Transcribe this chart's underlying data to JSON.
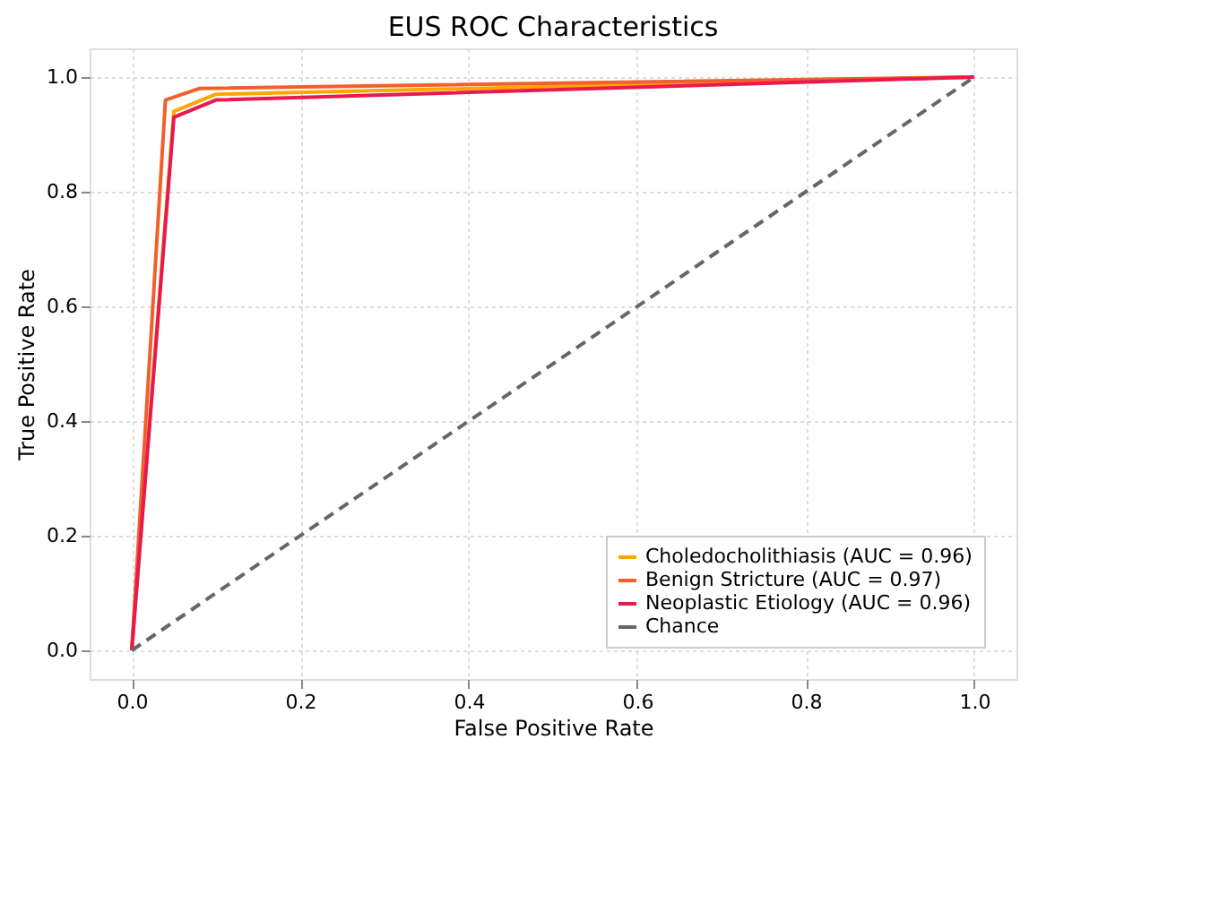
{
  "chart_data": {
    "type": "line",
    "title": "EUS ROC Characteristics",
    "xlabel": "False Positive Rate",
    "ylabel": "True Positive Rate",
    "xlim": [
      -0.05,
      1.05
    ],
    "ylim": [
      -0.05,
      1.05
    ],
    "xticks": [
      {
        "value": 0,
        "label": "0.0"
      },
      0.2,
      0.4,
      0.6,
      0.8,
      {
        "value": 1,
        "label": "1.0"
      }
    ],
    "yticks": [
      {
        "value": 0,
        "label": "0.0"
      },
      0.2,
      0.4,
      0.6,
      0.8,
      {
        "value": 1,
        "label": "1.0"
      }
    ],
    "grid": true,
    "legend": "bottom right",
    "marker": "none",
    "series": [
      {
        "name": "Choledocholithiasis (AUC = 0.96)",
        "color": "#ffa500",
        "x": [
          0,
          0.05,
          0.1,
          1
        ],
        "values": [
          0,
          0.94,
          0.97,
          1
        ],
        "line_style": "solid"
      },
      {
        "name": "Benign Stricture (AUC = 0.97)",
        "color": "#f0602a",
        "x": [
          0,
          0.04,
          0.08,
          1
        ],
        "values": [
          0,
          0.96,
          0.98,
          1
        ],
        "line_style": "solid"
      },
      {
        "name": "Neoplastic Etiology (AUC = 0.96)",
        "color": "#e8194f",
        "x": [
          0,
          0.05,
          0.1,
          1
        ],
        "values": [
          0,
          0.93,
          0.96,
          1
        ],
        "line_style": "solid"
      },
      {
        "name": "Chance",
        "color": "#666666",
        "x": [
          0,
          1
        ],
        "values": [
          0,
          1
        ],
        "line_style": "dashed"
      }
    ]
  }
}
